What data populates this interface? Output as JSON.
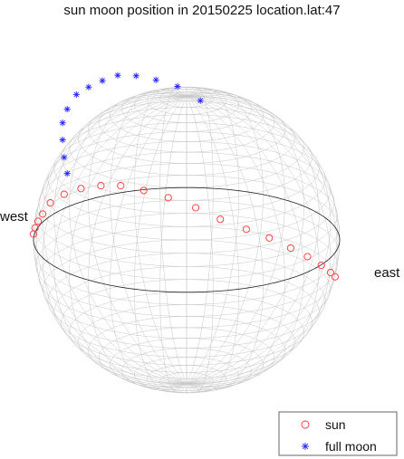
{
  "chart_data": {
    "type": "scatter",
    "title": "sun moon position in 20150225 location.lat:47",
    "annotations": {
      "west": "west",
      "east": "east"
    },
    "legend": {
      "placement": "bottom-right"
    },
    "grid": true,
    "colors": {
      "sun": "#ff3333",
      "moon": "#2222ff",
      "mesh": "#c8c8c8",
      "horizon": "#222222"
    },
    "projection": {
      "elevation_deg": 20,
      "rotation_deg": 0
    },
    "series": [
      {
        "name": "sun",
        "marker": "circle",
        "x": [
          -1.0,
          -0.99,
          -0.97,
          -0.94,
          -0.89,
          -0.8,
          -0.69,
          -0.56,
          -0.43,
          -0.28,
          -0.12,
          0.06,
          0.22,
          0.39,
          0.54,
          0.68,
          0.79,
          0.88,
          0.94,
          0.97
        ],
        "y": [
          -0.08,
          -0.1,
          -0.11,
          -0.11,
          -0.09,
          -0.09,
          -0.09,
          -0.09,
          -0.09,
          -0.1,
          -0.1,
          -0.1,
          -0.1,
          -0.1,
          -0.1,
          -0.1,
          -0.1,
          -0.1,
          -0.1,
          -0.1
        ],
        "z": [
          0.07,
          0.12,
          0.17,
          0.22,
          0.29,
          0.35,
          0.39,
          0.41,
          0.41,
          0.38,
          0.33,
          0.26,
          0.18,
          0.11,
          0.05,
          -0.02,
          -0.08,
          -0.14,
          -0.19,
          -0.22
        ]
      },
      {
        "name": "full moon",
        "marker": "star",
        "x": [
          -0.78,
          -0.8,
          -0.81,
          -0.81,
          -0.78,
          -0.72,
          -0.64,
          -0.55,
          -0.45,
          -0.33,
          -0.2,
          -0.06,
          0.09
        ],
        "y": [
          0.28,
          0.34,
          0.4,
          0.45,
          0.52,
          0.58,
          0.64,
          0.68,
          0.7,
          0.69,
          0.64,
          0.57,
          0.49
        ],
        "z": [
          0.36,
          0.45,
          0.55,
          0.65,
          0.72,
          0.8,
          0.83,
          0.86,
          0.89,
          0.89,
          0.88,
          0.86,
          0.79
        ]
      }
    ]
  }
}
